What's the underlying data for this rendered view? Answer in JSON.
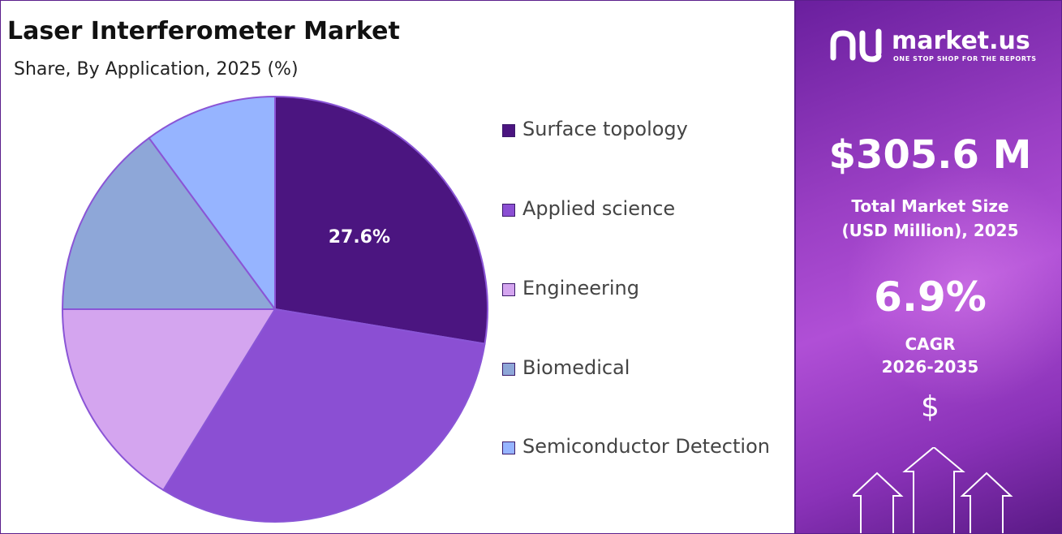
{
  "header": {
    "title": "Laser Interferometer Market",
    "subtitle": "Share, By Application, 2025 (%)"
  },
  "chart_data": {
    "type": "pie",
    "title": "Laser Interferometer Market",
    "subtitle": "Share, By Application, 2025 (%)",
    "categories": [
      "Surface topology",
      "Applied science",
      "Engineering",
      "Biomedical",
      "Semiconductor Detection"
    ],
    "values": [
      27.6,
      31.2,
      16.2,
      14.9,
      10.1
    ],
    "colors": [
      "#4b1580",
      "#8b4fd3",
      "#d4a5ef",
      "#8ea7d8",
      "#96b4ff"
    ],
    "data_labels": [
      "27.6%",
      "",
      "",
      "",
      ""
    ],
    "legend_position": "right",
    "start_angle": "12 o'clock, clockwise"
  },
  "legend": {
    "items": [
      {
        "label": "Surface topology",
        "color": "#4b1580"
      },
      {
        "label": "Applied science",
        "color": "#8b4fd3"
      },
      {
        "label": "Engineering",
        "color": "#d4a5ef"
      },
      {
        "label": "Biomedical",
        "color": "#8ea7d8"
      },
      {
        "label": "Semiconductor Detection",
        "color": "#96b4ff"
      }
    ]
  },
  "side_panel": {
    "brand": "market.us",
    "tagline": "ONE STOP SHOP FOR THE REPORTS",
    "market_size": "$305.6 M",
    "market_size_label_line1": "Total Market Size",
    "market_size_label_line2": "(USD Million), 2025",
    "cagr": "6.9%",
    "cagr_label_line1": "CAGR",
    "cagr_label_line2": "2026-2035",
    "currency_symbol": "$",
    "background_accent": "#9a3fc4"
  }
}
